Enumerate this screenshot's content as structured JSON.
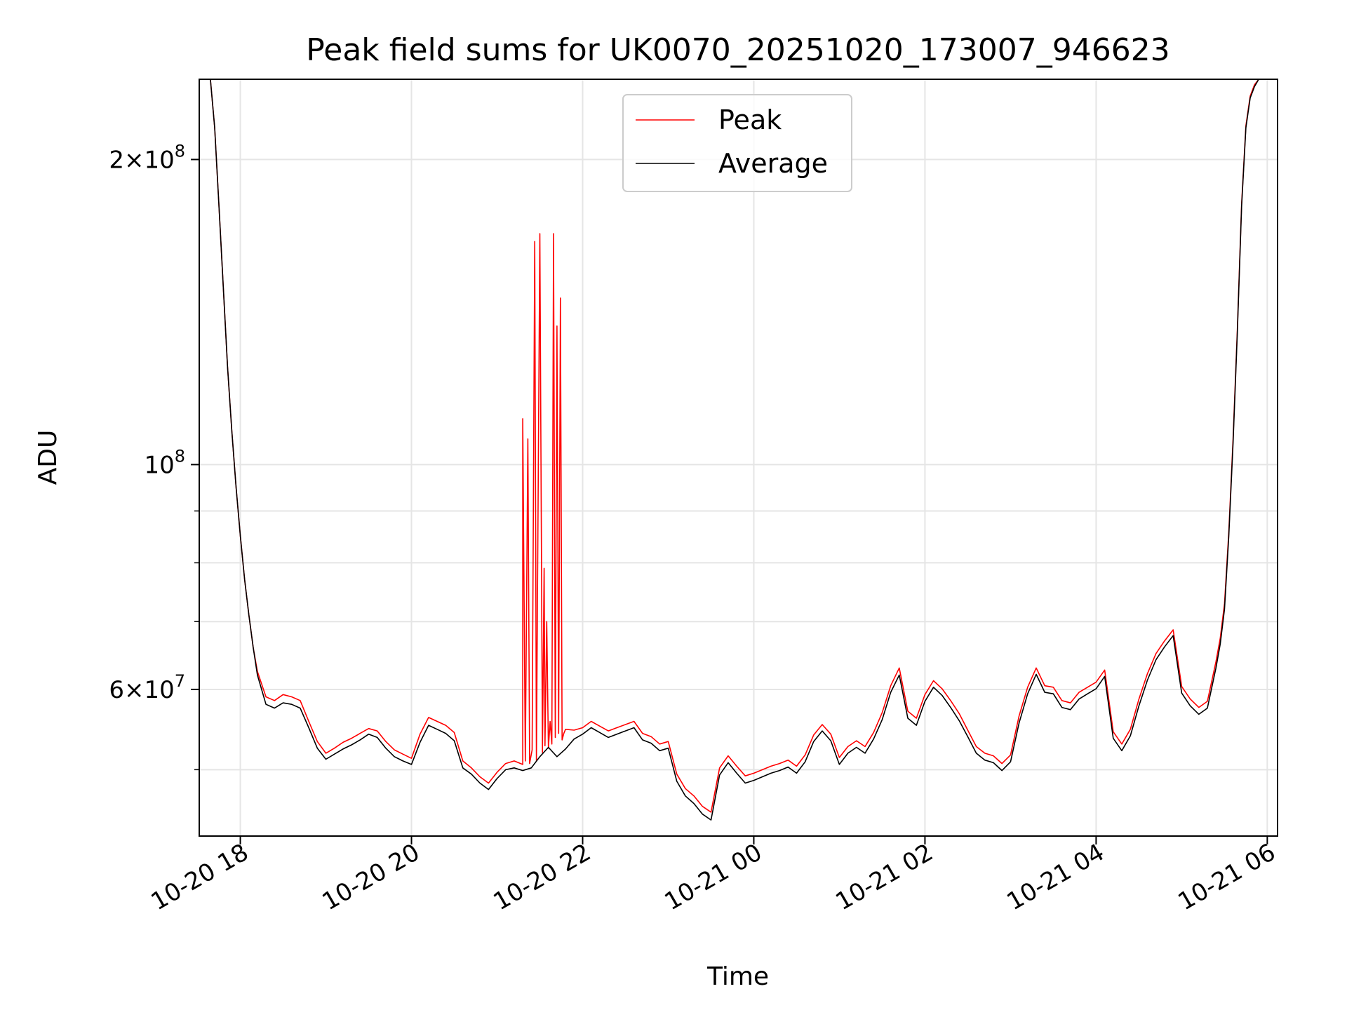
{
  "chart_data": {
    "type": "line",
    "title": "Peak field sums for UK0070_20251020_173007_946623",
    "xlabel": "Time",
    "ylabel": "ADU",
    "yscale": "log",
    "ylim": [
      43000000,
      240000000
    ],
    "xlim_hours": [
      -0.48,
      12.12
    ],
    "grid": true,
    "legend_position": "upper center",
    "x_ticks": [
      {
        "hour": 0,
        "label": "10-20 18"
      },
      {
        "hour": 2,
        "label": "10-20 20"
      },
      {
        "hour": 4,
        "label": "10-20 22"
      },
      {
        "hour": 6,
        "label": "10-21 00"
      },
      {
        "hour": 8,
        "label": "10-21 02"
      },
      {
        "hour": 10,
        "label": "10-21 04"
      },
      {
        "hour": 12,
        "label": "10-21 06"
      }
    ],
    "y_major_ticks": [
      {
        "value": 60000000,
        "mantissa": "6",
        "exponent": "7"
      },
      {
        "value": 100000000,
        "mantissa": "",
        "exponent": "8"
      },
      {
        "value": 200000000,
        "mantissa": "2",
        "exponent": "8"
      }
    ],
    "y_minor_ticks": [
      50000000,
      70000000,
      80000000,
      90000000
    ],
    "tick_text": {
      "times": "×",
      "base": "10"
    },
    "series": [
      {
        "name": "Average",
        "color": "#000000",
        "x_hours": [
          -0.35,
          -0.3,
          -0.25,
          -0.2,
          -0.15,
          -0.1,
          -0.05,
          0,
          0.05,
          0.1,
          0.15,
          0.2,
          0.3,
          0.4,
          0.5,
          0.6,
          0.7,
          0.8,
          0.9,
          1.0,
          1.1,
          1.2,
          1.3,
          1.4,
          1.5,
          1.6,
          1.7,
          1.8,
          1.9,
          2.0,
          2.1,
          2.2,
          2.3,
          2.4,
          2.5,
          2.6,
          2.7,
          2.8,
          2.9,
          3.0,
          3.1,
          3.2,
          3.3,
          3.4,
          3.5,
          3.6,
          3.7,
          3.8,
          3.9,
          4.0,
          4.1,
          4.2,
          4.3,
          4.4,
          4.5,
          4.6,
          4.7,
          4.8,
          4.9,
          5.0,
          5.1,
          5.2,
          5.3,
          5.4,
          5.5,
          5.6,
          5.7,
          5.8,
          5.9,
          6.0,
          6.1,
          6.2,
          6.3,
          6.4,
          6.5,
          6.6,
          6.7,
          6.8,
          6.9,
          7.0,
          7.1,
          7.2,
          7.3,
          7.4,
          7.5,
          7.6,
          7.7,
          7.8,
          7.9,
          8.0,
          8.1,
          8.2,
          8.3,
          8.4,
          8.5,
          8.6,
          8.7,
          8.8,
          8.9,
          9.0,
          9.1,
          9.2,
          9.3,
          9.4,
          9.5,
          9.6,
          9.7,
          9.8,
          9.9,
          10.0,
          10.1,
          10.2,
          10.3,
          10.4,
          10.5,
          10.6,
          10.7,
          10.8,
          10.9,
          11.0,
          11.1,
          11.2,
          11.3,
          11.4,
          11.45,
          11.5,
          11.55,
          11.6,
          11.65,
          11.7,
          11.75,
          11.8,
          11.85,
          11.9
        ],
        "values": [
          240000000,
          215000000,
          180000000,
          150000000,
          125000000,
          108000000,
          95000000,
          85000000,
          77000000,
          71000000,
          66000000,
          62000000,
          58000000,
          57500000,
          58200000,
          58000000,
          57500000,
          55000000,
          52500000,
          51200000,
          51800000,
          52400000,
          52900000,
          53500000,
          54200000,
          53800000,
          52500000,
          51500000,
          51000000,
          50600000,
          53200000,
          55300000,
          54800000,
          54300000,
          53400000,
          50200000,
          49500000,
          48500000,
          47800000,
          49000000,
          50000000,
          50200000,
          49900000,
          50200000,
          51500000,
          52600000,
          51500000,
          52400000,
          53600000,
          54200000,
          55000000,
          54400000,
          53800000,
          54200000,
          54600000,
          55000000,
          53500000,
          53100000,
          52200000,
          52500000,
          48700000,
          47100000,
          46300000,
          45200000,
          44600000,
          49400000,
          50800000,
          49600000,
          48500000,
          48800000,
          49200000,
          49600000,
          49900000,
          50300000,
          49600000,
          50900000,
          53300000,
          54600000,
          53400000,
          50600000,
          51900000,
          52600000,
          51900000,
          53600000,
          56000000,
          59600000,
          62000000,
          56200000,
          55300000,
          58400000,
          60300000,
          59200000,
          57600000,
          55900000,
          53900000,
          51900000,
          51100000,
          50800000,
          49900000,
          50900000,
          55600000,
          59400000,
          62100000,
          59600000,
          59400000,
          57600000,
          57300000,
          58700000,
          59400000,
          60100000,
          61800000,
          53700000,
          52200000,
          54000000,
          57800000,
          61300000,
          64200000,
          66100000,
          67800000,
          59500000,
          57800000,
          56700000,
          57500000,
          63000000,
          66500000,
          72000000,
          85000000,
          105000000,
          135000000,
          180000000,
          215000000,
          230000000,
          236000000,
          240000000
        ]
      },
      {
        "name": "Peak",
        "color": "#ff0000",
        "x_hours": [
          -0.35,
          -0.3,
          -0.25,
          -0.2,
          -0.15,
          -0.1,
          -0.05,
          0,
          0.05,
          0.1,
          0.15,
          0.2,
          0.3,
          0.4,
          0.5,
          0.6,
          0.7,
          0.8,
          0.9,
          1.0,
          1.1,
          1.2,
          1.3,
          1.4,
          1.5,
          1.6,
          1.7,
          1.8,
          1.9,
          2.0,
          2.1,
          2.2,
          2.3,
          2.4,
          2.5,
          2.6,
          2.7,
          2.8,
          2.9,
          3.0,
          3.1,
          3.2,
          3.3,
          3.3,
          3.33,
          3.36,
          3.38,
          3.41,
          3.44,
          3.46,
          3.5,
          3.53,
          3.55,
          3.56,
          3.58,
          3.6,
          3.62,
          3.64,
          3.66,
          3.68,
          3.7,
          3.72,
          3.74,
          3.76,
          3.78,
          3.8,
          3.9,
          4.0,
          4.1,
          4.2,
          4.3,
          4.4,
          4.5,
          4.6,
          4.7,
          4.8,
          4.9,
          5.0,
          5.1,
          5.2,
          5.3,
          5.4,
          5.5,
          5.6,
          5.7,
          5.8,
          5.9,
          6.0,
          6.1,
          6.2,
          6.3,
          6.4,
          6.5,
          6.6,
          6.7,
          6.8,
          6.9,
          7.0,
          7.1,
          7.2,
          7.3,
          7.4,
          7.5,
          7.6,
          7.7,
          7.8,
          7.9,
          8.0,
          8.1,
          8.2,
          8.3,
          8.4,
          8.5,
          8.6,
          8.7,
          8.8,
          8.9,
          9.0,
          9.1,
          9.2,
          9.3,
          9.4,
          9.5,
          9.6,
          9.7,
          9.8,
          9.9,
          10.0,
          10.1,
          10.2,
          10.3,
          10.4,
          10.5,
          10.6,
          10.7,
          10.8,
          10.9,
          11.0,
          11.1,
          11.2,
          11.3,
          11.4,
          11.45,
          11.5,
          11.55,
          11.6,
          11.65,
          11.7,
          11.75,
          11.8,
          11.85,
          11.9
        ],
        "values": [
          240000000,
          215000000,
          180000000,
          150000000,
          125000000,
          108000000,
          95000000,
          85000000,
          77000000,
          71000000,
          66000000,
          62500000,
          59000000,
          58500000,
          59300000,
          59000000,
          58500000,
          55800000,
          53300000,
          51900000,
          52500000,
          53200000,
          53700000,
          54300000,
          54900000,
          54600000,
          53300000,
          52300000,
          51800000,
          51300000,
          54200000,
          56300000,
          55800000,
          55300000,
          54400000,
          51000000,
          50200000,
          49200000,
          48500000,
          49700000,
          50700000,
          51000000,
          50600000,
          111000000,
          51000000,
          106000000,
          50700000,
          52300000,
          166000000,
          51000000,
          169000000,
          52000000,
          79000000,
          52800000,
          70000000,
          52500000,
          55800000,
          53000000,
          169000000,
          53800000,
          137000000,
          54300000,
          146000000,
          53500000,
          54300000,
          54800000,
          54700000,
          55000000,
          55800000,
          55200000,
          54600000,
          55000000,
          55400000,
          55800000,
          54300000,
          53900000,
          53000000,
          53300000,
          49500000,
          47900000,
          47100000,
          46000000,
          45400000,
          50200000,
          51600000,
          50400000,
          49300000,
          49600000,
          50000000,
          50400000,
          50700000,
          51100000,
          50400000,
          51700000,
          54100000,
          55400000,
          54200000,
          51400000,
          52700000,
          53400000,
          52700000,
          54400000,
          56900000,
          60500000,
          63000000,
          57100000,
          56200000,
          59300000,
          61200000,
          60100000,
          58500000,
          56800000,
          54700000,
          52700000,
          51900000,
          51600000,
          50700000,
          51700000,
          56500000,
          60300000,
          63000000,
          60500000,
          60300000,
          58500000,
          58200000,
          59600000,
          60300000,
          61000000,
          62700000,
          54500000,
          53000000,
          54800000,
          58700000,
          62200000,
          65100000,
          67000000,
          68700000,
          60400000,
          58700000,
          57600000,
          58400000,
          63900000,
          67400000,
          72900000,
          85800000,
          106000000,
          136000000,
          181000000,
          216000000,
          231000000,
          237000000,
          240000000
        ]
      }
    ]
  }
}
